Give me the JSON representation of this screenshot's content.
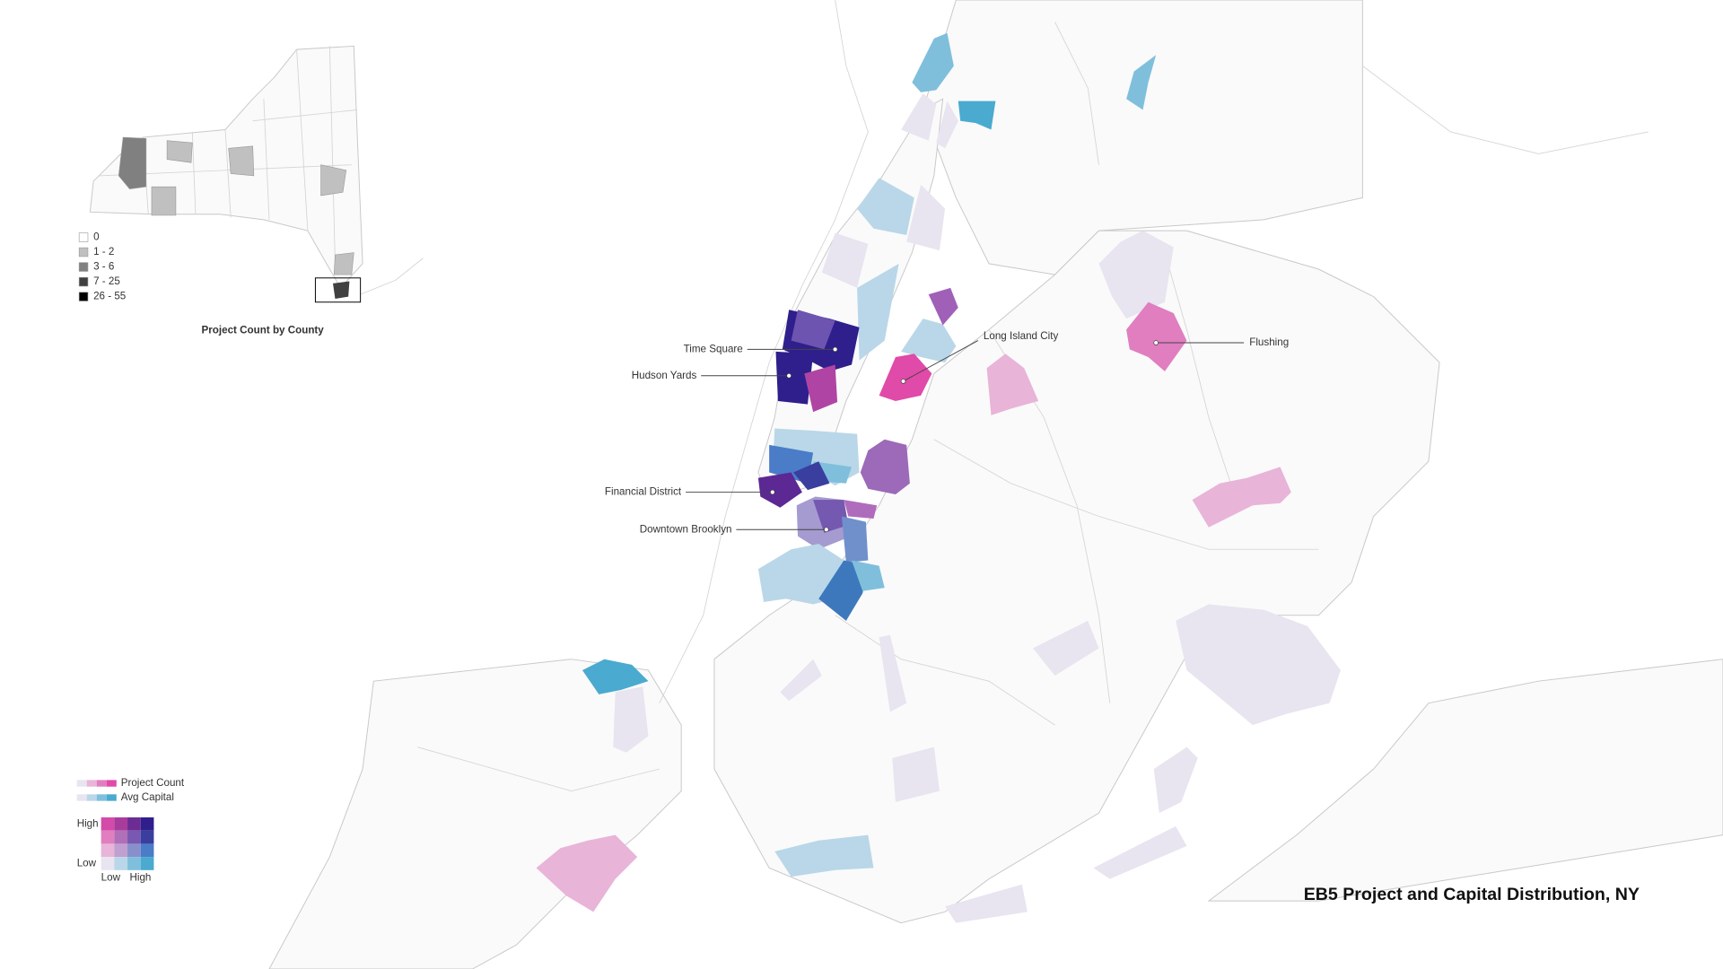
{
  "title": "EB5 Project and Capital Distribution, NY",
  "inset": {
    "title": "Project Count by County",
    "legend": [
      {
        "label": "0",
        "color": "#ffffff"
      },
      {
        "label": "1 - 2",
        "color": "#c0c0c0"
      },
      {
        "label": "3 - 6",
        "color": "#808080"
      },
      {
        "label": "7 - 25",
        "color": "#404040"
      },
      {
        "label": "26 - 55",
        "color": "#000000"
      }
    ]
  },
  "places": [
    "Time Square",
    "Hudson Yards",
    "Long Island City",
    "Financial District",
    "Downtown Brooklyn",
    "Flushing"
  ],
  "bivariate_legend": {
    "rows": [
      "Project Count",
      "Avg Capital"
    ],
    "y_high": "High",
    "y_low": "Low",
    "x_low": "Low",
    "x_high": "High"
  }
}
